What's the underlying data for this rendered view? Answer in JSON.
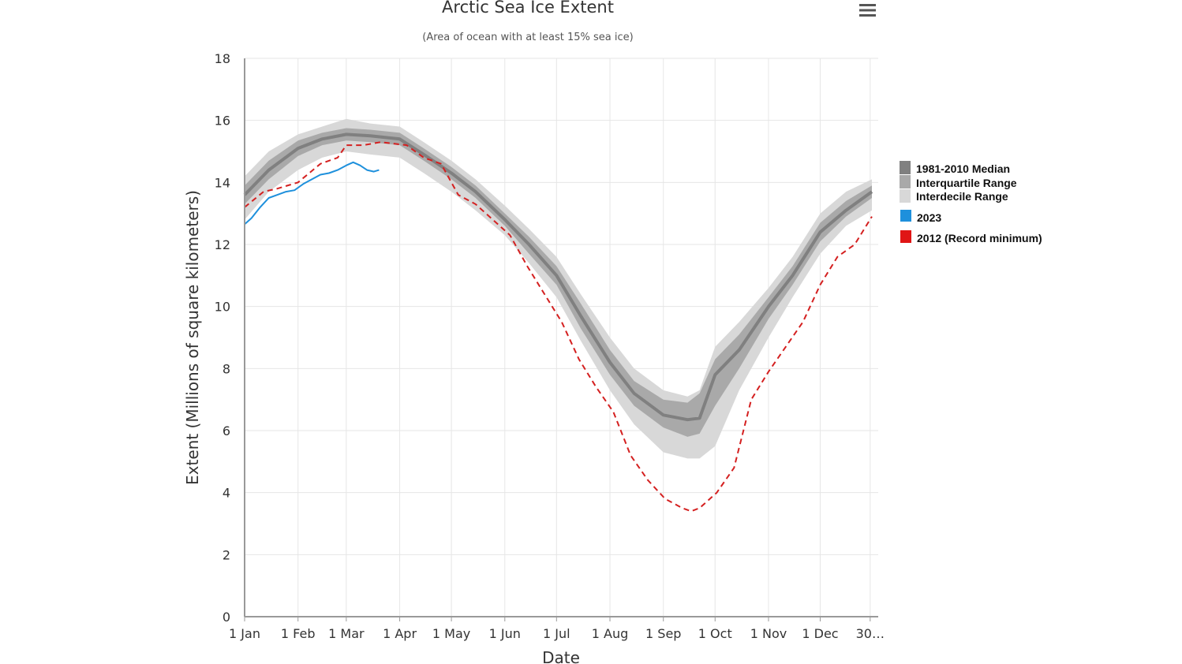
{
  "chart_data": {
    "type": "area",
    "title": "Arctic Sea Ice Extent",
    "subtitle": "(Area of ocean with at least 15% sea ice)",
    "xlabel": "Date",
    "ylabel": "Extent (Millions of square kilometers)",
    "xlim": [
      1,
      365
    ],
    "ylim": [
      0,
      18
    ],
    "y_ticks": [
      0,
      2,
      4,
      6,
      8,
      10,
      12,
      14,
      16,
      18
    ],
    "x_ticks": [
      {
        "label": "1 Jan",
        "day": 1
      },
      {
        "label": "1 Feb",
        "day": 32
      },
      {
        "label": "1 Mar",
        "day": 60
      },
      {
        "label": "1 Apr",
        "day": 91
      },
      {
        "label": "1 May",
        "day": 121
      },
      {
        "label": "1 Jun",
        "day": 152
      },
      {
        "label": "1 Jul",
        "day": 182
      },
      {
        "label": "1 Aug",
        "day": 213
      },
      {
        "label": "1 Sep",
        "day": 244
      },
      {
        "label": "1 Oct",
        "day": 274
      },
      {
        "label": "1 Nov",
        "day": 305
      },
      {
        "label": "1 Dec",
        "day": 335
      },
      {
        "label": "30…",
        "day": 364
      }
    ],
    "grid": true,
    "legend_position": "right",
    "days": [
      1,
      15,
      32,
      46,
      60,
      74,
      91,
      105,
      121,
      135,
      152,
      166,
      182,
      196,
      213,
      227,
      244,
      258,
      265,
      274,
      288,
      305,
      319,
      335,
      350,
      365
    ],
    "series": [
      {
        "name": "1981-2010 Median",
        "color": "#808080",
        "values": [
          13.6,
          14.4,
          15.1,
          15.4,
          15.55,
          15.5,
          15.4,
          14.9,
          14.3,
          13.7,
          12.8,
          12.0,
          11.0,
          9.7,
          8.2,
          7.2,
          6.5,
          6.35,
          6.4,
          7.8,
          8.6,
          10.0,
          11.0,
          12.4,
          13.1,
          13.7
        ]
      },
      {
        "name": "Interquartile Range",
        "color": "#a9a9a9",
        "upper": [
          13.9,
          14.7,
          15.35,
          15.6,
          15.75,
          15.7,
          15.6,
          15.1,
          14.5,
          13.9,
          13.0,
          12.25,
          11.3,
          10.1,
          8.6,
          7.6,
          7.0,
          6.9,
          7.2,
          8.3,
          9.1,
          10.3,
          11.3,
          12.7,
          13.4,
          13.9
        ],
        "lower": [
          13.3,
          14.1,
          14.85,
          15.2,
          15.35,
          15.3,
          15.2,
          14.7,
          14.1,
          13.5,
          12.6,
          11.7,
          10.7,
          9.3,
          7.8,
          6.8,
          6.1,
          5.8,
          5.9,
          6.8,
          8.0,
          9.6,
          10.7,
          12.1,
          12.9,
          13.5
        ]
      },
      {
        "name": "Interdecile Range",
        "color": "#d8d8d8",
        "upper": [
          14.2,
          15.0,
          15.55,
          15.8,
          16.05,
          15.9,
          15.8,
          15.3,
          14.7,
          14.1,
          13.25,
          12.5,
          11.6,
          10.4,
          9.0,
          8.0,
          7.3,
          7.1,
          7.3,
          8.7,
          9.5,
          10.6,
          11.6,
          13.0,
          13.7,
          14.1
        ],
        "lower": [
          12.8,
          13.7,
          14.4,
          14.8,
          15.0,
          14.9,
          14.8,
          14.3,
          13.7,
          13.1,
          12.3,
          11.4,
          10.3,
          8.9,
          7.3,
          6.2,
          5.3,
          5.1,
          5.1,
          5.5,
          7.3,
          9.0,
          10.3,
          11.7,
          12.6,
          13.1
        ]
      }
    ],
    "series_2023": {
      "name": "2023",
      "color": "#1e90dc",
      "days": [
        1,
        5,
        10,
        15,
        20,
        25,
        30,
        35,
        40,
        45,
        50,
        55,
        60,
        64,
        68,
        72,
        76,
        79
      ],
      "values": [
        12.65,
        12.85,
        13.2,
        13.5,
        13.6,
        13.7,
        13.75,
        13.95,
        14.1,
        14.25,
        14.3,
        14.4,
        14.55,
        14.65,
        14.55,
        14.4,
        14.35,
        14.4
      ]
    },
    "series_2012": {
      "name": "2012 (Record minimum)",
      "color": "#d42020",
      "days": [
        1,
        12,
        20,
        32,
        45,
        55,
        60,
        70,
        80,
        95,
        105,
        115,
        125,
        135,
        145,
        155,
        165,
        175,
        185,
        195,
        205,
        215,
        225,
        235,
        245,
        255,
        260,
        265,
        275,
        285,
        295,
        305,
        315,
        325,
        335,
        345,
        355,
        365
      ],
      "values": [
        13.2,
        13.7,
        13.8,
        14.0,
        14.6,
        14.8,
        15.2,
        15.2,
        15.3,
        15.2,
        14.8,
        14.6,
        13.6,
        13.3,
        12.8,
        12.3,
        11.3,
        10.4,
        9.5,
        8.3,
        7.4,
        6.6,
        5.2,
        4.4,
        3.8,
        3.5,
        3.4,
        3.5,
        4.0,
        4.8,
        7.0,
        7.9,
        8.7,
        9.5,
        10.7,
        11.6,
        12.0,
        12.9
      ]
    }
  },
  "legend": {
    "items": [
      {
        "label": "1981-2010 Median",
        "color": "#808080"
      },
      {
        "label": "Interquartile Range",
        "color": "#a9a9a9"
      },
      {
        "label": "Interdecile Range",
        "color": "#d8d8d8"
      },
      {
        "label": "2023",
        "color": "#1e90dc"
      },
      {
        "label": "2012 (Record minimum)",
        "color": "#e01515"
      }
    ]
  },
  "menu": {
    "icon": "hamburger-menu-icon"
  }
}
